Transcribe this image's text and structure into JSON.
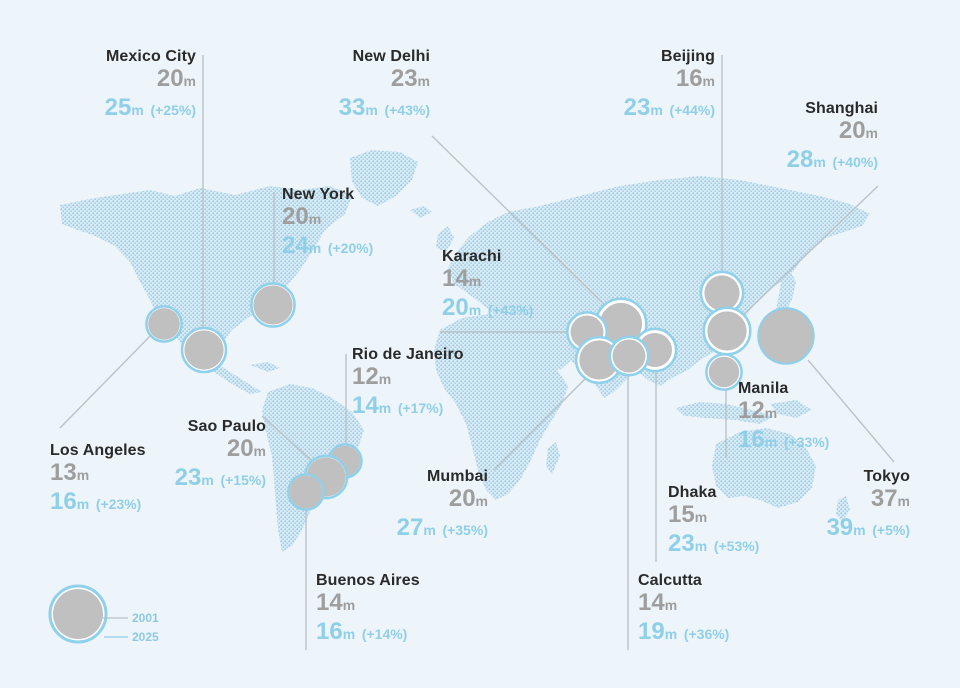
{
  "colors": {
    "background": "#edf5fa",
    "land_dot": "#9ccde6",
    "circle_2001": "#c0c0c0",
    "ring_2025": "#8fd0ea",
    "value_2001": "#9e9e9e",
    "value_2025": "#8fcfe8",
    "leader_line": "#b9c3c8",
    "city_name": "#2a2a2a"
  },
  "unit": "m",
  "cities": [
    {
      "id": "mexico-city",
      "name": "Mexico City",
      "pop_2001": "20",
      "pop_2025": "25",
      "change": "(+25%)"
    },
    {
      "id": "new-delhi",
      "name": "New Delhi",
      "pop_2001": "23",
      "pop_2025": "33",
      "change": "(+43%)"
    },
    {
      "id": "beijing",
      "name": "Beijing",
      "pop_2001": "16",
      "pop_2025": "23",
      "change": "(+44%)"
    },
    {
      "id": "shanghai",
      "name": "Shanghai",
      "pop_2001": "20",
      "pop_2025": "28",
      "change": "(+40%)"
    },
    {
      "id": "new-york",
      "name": "New York",
      "pop_2001": "20",
      "pop_2025": "24",
      "change": "(+20%)"
    },
    {
      "id": "karachi",
      "name": "Karachi",
      "pop_2001": "14",
      "pop_2025": "20",
      "change": "(+43%)"
    },
    {
      "id": "rio-de-janeiro",
      "name": "Rio de Janeiro",
      "pop_2001": "12",
      "pop_2025": "14",
      "change": "(+17%)"
    },
    {
      "id": "manila",
      "name": "Manila",
      "pop_2001": "12",
      "pop_2025": "16",
      "change": "(+33%)"
    },
    {
      "id": "los-angeles",
      "name": "Los Angeles",
      "pop_2001": "13",
      "pop_2025": "16",
      "change": "(+23%)"
    },
    {
      "id": "sao-paulo",
      "name": "Sao Paulo",
      "pop_2001": "20",
      "pop_2025": "23",
      "change": "(+15%)"
    },
    {
      "id": "tokyo",
      "name": "Tokyo",
      "pop_2001": "37",
      "pop_2025": "39",
      "change": "(+5%)"
    },
    {
      "id": "mumbai",
      "name": "Mumbai",
      "pop_2001": "20",
      "pop_2025": "27",
      "change": "(+35%)"
    },
    {
      "id": "dhaka",
      "name": "Dhaka",
      "pop_2001": "15",
      "pop_2025": "23",
      "change": "(+53%)"
    },
    {
      "id": "buenos-aires",
      "name": "Buenos Aires",
      "pop_2001": "14",
      "pop_2025": "16",
      "change": "(+14%)"
    },
    {
      "id": "calcutta",
      "name": "Calcutta",
      "pop_2001": "14",
      "pop_2025": "19",
      "change": "(+36%)"
    }
  ],
  "legend": {
    "year_2001": "2001",
    "year_2025": "2025"
  }
}
